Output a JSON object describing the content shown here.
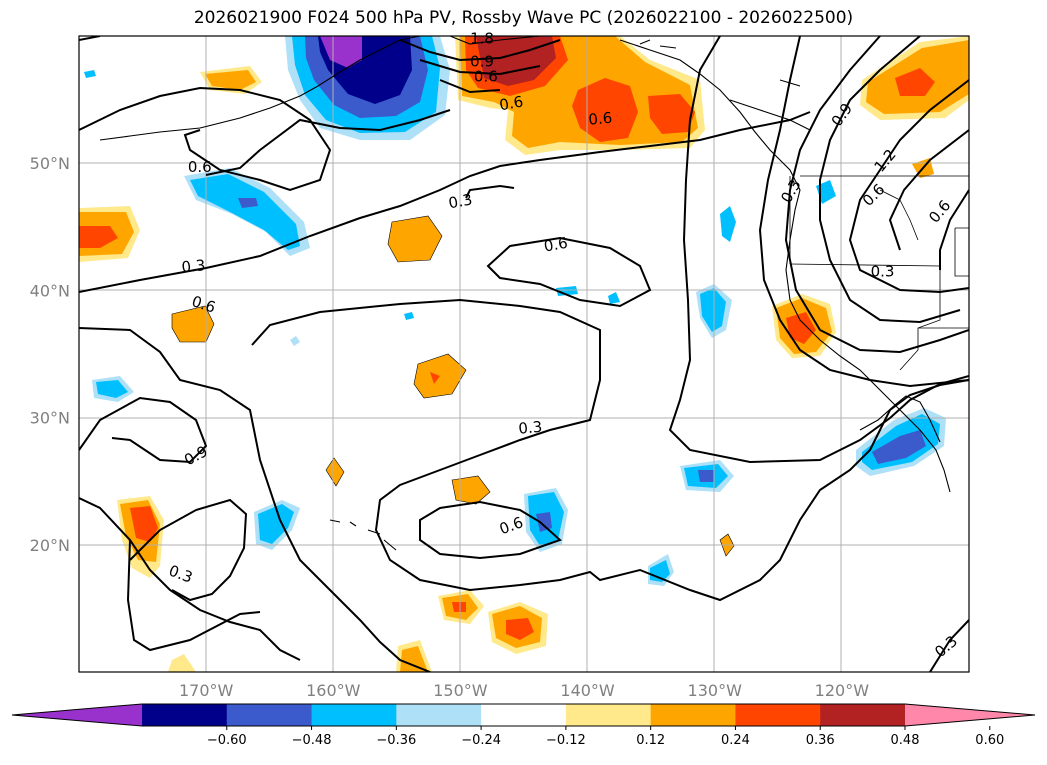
{
  "title": "2026021900 F024 500 hPa PV, Rossby Wave PC (2026022100 - 2026022500)",
  "map_extent": {
    "lon_min": -180,
    "lon_max": -110,
    "lat_min": 10,
    "lat_max": 60
  },
  "lat_ticks": [
    {
      "value": 20,
      "label": "20°N"
    },
    {
      "value": 30,
      "label": "30°N"
    },
    {
      "value": 40,
      "label": "40°N"
    },
    {
      "value": 50,
      "label": "50°N"
    }
  ],
  "lon_ticks": [
    {
      "value": -170,
      "label": "170°W"
    },
    {
      "value": -160,
      "label": "160°W"
    },
    {
      "value": -150,
      "label": "150°W"
    },
    {
      "value": -140,
      "label": "140°W"
    },
    {
      "value": -130,
      "label": "130°W"
    },
    {
      "value": -120,
      "label": "120°W"
    }
  ],
  "colorbar": {
    "levels": [
      "−0.60",
      "−0.48",
      "−0.36",
      "−0.24",
      "−0.12",
      "0.12",
      "0.24",
      "0.36",
      "0.48",
      "0.60"
    ],
    "colors": [
      "#9932cc",
      "#00008b",
      "#3b5bcc",
      "#00bfff",
      "#aee0f7",
      "#ffffff",
      "#ffe98a",
      "#ffa500",
      "#ff4500",
      "#b22222",
      "#ff88aa"
    ]
  },
  "contour_labels": [
    {
      "text": "0.6",
      "lon": -170.5,
      "lat": 49.7,
      "rot": 0
    },
    {
      "text": "0.3",
      "lon": -171.0,
      "lat": 41.9,
      "rot": -5
    },
    {
      "text": "0.6",
      "lon": -170.2,
      "lat": 38.9,
      "rot": 18
    },
    {
      "text": "0.9",
      "lon": -170.8,
      "lat": 27.0,
      "rot": -28
    },
    {
      "text": "0.3",
      "lon": -172.0,
      "lat": 17.7,
      "rot": 20
    },
    {
      "text": "0.6",
      "lon": -146.0,
      "lat": 54.7,
      "rot": -10
    },
    {
      "text": "0.6",
      "lon": -139.0,
      "lat": 53.5,
      "rot": -5
    },
    {
      "text": "0.6",
      "lon": -148.0,
      "lat": 56.8,
      "rot": 0
    },
    {
      "text": "0.9",
      "lon": -148.3,
      "lat": 58.0,
      "rot": 0
    },
    {
      "text": "1.8",
      "lon": -148.3,
      "lat": 59.8,
      "rot": 0
    },
    {
      "text": "0.3",
      "lon": -150.0,
      "lat": 47.0,
      "rot": -10
    },
    {
      "text": "0.6",
      "lon": -142.5,
      "lat": 43.6,
      "rot": -10
    },
    {
      "text": "0.3",
      "lon": -144.5,
      "lat": 29.2,
      "rot": -5
    },
    {
      "text": "0.6",
      "lon": -146.0,
      "lat": 21.5,
      "rot": -20
    },
    {
      "text": "0.3",
      "lon": -124.0,
      "lat": 47.8,
      "rot": -60
    },
    {
      "text": "0.9",
      "lon": -120.0,
      "lat": 53.8,
      "rot": -55
    },
    {
      "text": "1.2",
      "lon": -116.6,
      "lat": 50.2,
      "rot": -50
    },
    {
      "text": "0.6",
      "lon": -117.5,
      "lat": 47.5,
      "rot": -45
    },
    {
      "text": "0.6",
      "lon": -112.3,
      "lat": 46.2,
      "rot": -50
    },
    {
      "text": "0.3",
      "lon": -116.8,
      "lat": 41.5,
      "rot": 0
    },
    {
      "text": "0.3",
      "lon": -111.8,
      "lat": 12.0,
      "rot": -40
    }
  ]
}
